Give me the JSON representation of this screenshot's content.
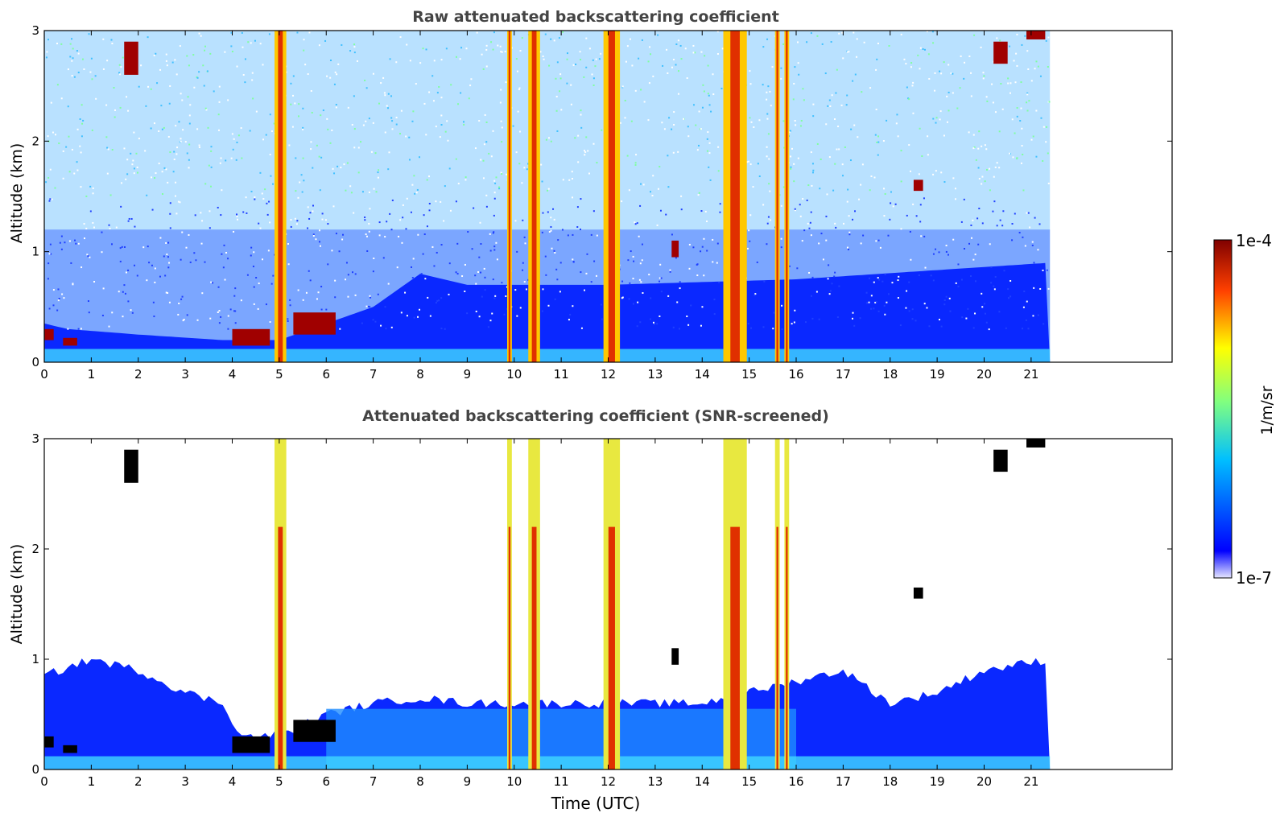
{
  "figure": {
    "colorbar": {
      "label": "1/m/sr",
      "max_label": "1e-4",
      "min_label": "1e-7",
      "scale": "log",
      "range": [
        1e-07,
        0.0001
      ],
      "colormap": "jet",
      "colors": [
        "#e6e6ff",
        "#0000ff",
        "#00bfff",
        "#80ff80",
        "#ffff00",
        "#ff4000",
        "#800000"
      ]
    }
  },
  "chart_data": [
    {
      "type": "heatmap",
      "title": "Raw attenuated backscattering coefficient",
      "xlabel": "",
      "ylabel": "Altitude (km)",
      "xlim": [
        0,
        24
      ],
      "ylim": [
        0,
        3
      ],
      "data_extent_x": [
        0,
        21.4
      ],
      "xticks": [
        "0",
        "1",
        "2",
        "3",
        "4",
        "5",
        "6",
        "7",
        "8",
        "9",
        "10",
        "11",
        "12",
        "13",
        "14",
        "15",
        "16",
        "17",
        "18",
        "19",
        "20",
        "21"
      ],
      "yticks": [
        "0",
        "1",
        "2",
        "3"
      ],
      "grid": false,
      "boundary_layer_km": [
        [
          0,
          0.35
        ],
        [
          0.5,
          0.3
        ],
        [
          2,
          0.25
        ],
        [
          3.8,
          0.2
        ],
        [
          5,
          0.2
        ],
        [
          6,
          0.35
        ],
        [
          7,
          0.5
        ],
        [
          8,
          0.8
        ],
        [
          9,
          0.7
        ],
        [
          12,
          0.7
        ],
        [
          16,
          0.75
        ],
        [
          21.4,
          0.9
        ]
      ],
      "precipitation_columns_utc": [
        [
          4.9,
          5.15
        ],
        [
          9.85,
          9.95
        ],
        [
          10.3,
          10.55
        ],
        [
          11.9,
          12.25
        ],
        [
          14.45,
          14.95
        ],
        [
          15.55,
          15.65
        ],
        [
          15.75,
          15.85
        ]
      ],
      "cloud_patches": [
        {
          "t": [
            4.0,
            4.8
          ],
          "z": [
            0.15,
            0.3
          ]
        },
        {
          "t": [
            0.0,
            0.2
          ],
          "z": [
            0.2,
            0.3
          ]
        },
        {
          "t": [
            0.4,
            0.7
          ],
          "z": [
            0.15,
            0.22
          ]
        },
        {
          "t": [
            5.3,
            6.2
          ],
          "z": [
            0.25,
            0.45
          ]
        },
        {
          "t": [
            13.35,
            13.5
          ],
          "z": [
            0.95,
            1.1
          ]
        },
        {
          "t": [
            18.5,
            18.7
          ],
          "z": [
            1.55,
            1.65
          ]
        },
        {
          "t": [
            20.2,
            20.5
          ],
          "z": [
            2.7,
            2.9
          ]
        },
        {
          "t": [
            20.9,
            21.3
          ],
          "z": [
            2.92,
            3.0
          ]
        },
        {
          "t": [
            1.7,
            2.0
          ],
          "z": [
            2.6,
            2.9
          ]
        }
      ]
    },
    {
      "type": "heatmap",
      "title": "Attenuated backscattering coefficient (SNR-screened)",
      "xlabel": "Time (UTC)",
      "ylabel": "Altitude (km)",
      "xlim": [
        0,
        24
      ],
      "ylim": [
        0,
        3
      ],
      "data_extent_x": [
        0,
        21.4
      ],
      "xticks": [
        "0",
        "1",
        "2",
        "3",
        "4",
        "5",
        "6",
        "7",
        "8",
        "9",
        "10",
        "11",
        "12",
        "13",
        "14",
        "15",
        "16",
        "17",
        "18",
        "19",
        "20",
        "21"
      ],
      "yticks": [
        "0",
        "1",
        "2",
        "3"
      ],
      "grid": false,
      "screened_layer_top_km": [
        [
          0,
          0.85
        ],
        [
          1,
          1.0
        ],
        [
          2,
          0.9
        ],
        [
          3,
          0.7
        ],
        [
          3.8,
          0.6
        ],
        [
          4.2,
          0.3
        ],
        [
          4.8,
          0.3
        ],
        [
          5.2,
          0.35
        ],
        [
          6,
          0.5
        ],
        [
          7,
          0.6
        ],
        [
          8,
          0.65
        ],
        [
          9,
          0.6
        ],
        [
          12,
          0.6
        ],
        [
          14,
          0.6
        ],
        [
          16,
          0.8
        ],
        [
          17,
          0.9
        ],
        [
          18,
          0.6
        ],
        [
          19,
          0.7
        ],
        [
          20,
          0.9
        ],
        [
          21.4,
          1.0
        ]
      ]
    }
  ]
}
